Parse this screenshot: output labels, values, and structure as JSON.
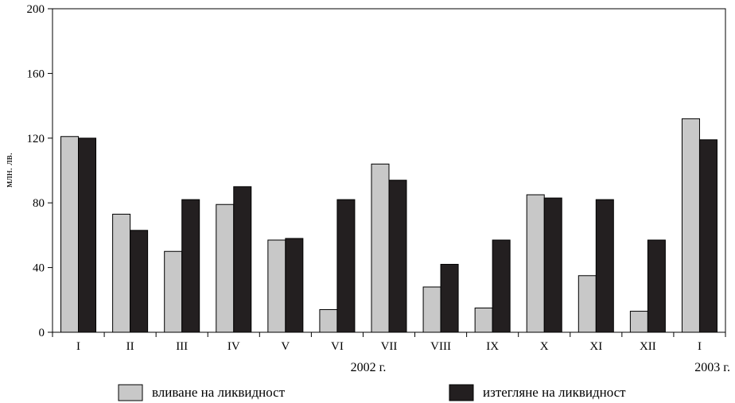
{
  "chart_data": {
    "type": "bar",
    "ylabel": "млн. лв.",
    "ylim": [
      0,
      200
    ],
    "yticks": [
      0,
      40,
      80,
      120,
      160,
      200
    ],
    "categories": [
      "I",
      "II",
      "III",
      "IV",
      "V",
      "VI",
      "VII",
      "VIII",
      "IX",
      "X",
      "XI",
      "XII",
      "I"
    ],
    "year_labels": [
      "2002 г.",
      "2003 г."
    ],
    "grid": false,
    "legend_position": "bottom",
    "series": [
      {
        "name": "вливане на ликвидност",
        "color": "#c8c8c8",
        "values": [
          121,
          73,
          50,
          79,
          57,
          14,
          104,
          28,
          15,
          85,
          35,
          13,
          132
        ]
      },
      {
        "name": "изтегляне на ликвидност",
        "color": "#231f20",
        "values": [
          120,
          63,
          82,
          90,
          58,
          82,
          94,
          42,
          57,
          83,
          82,
          57,
          119
        ]
      }
    ]
  }
}
